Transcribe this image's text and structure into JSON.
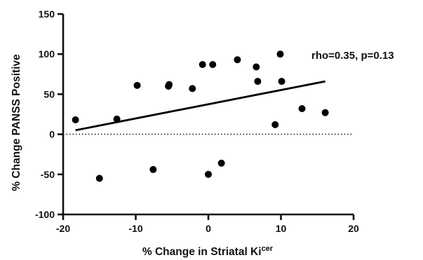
{
  "chart_data": {
    "type": "scatter",
    "xlabel_main": "% Change in Striatal Ki",
    "xlabel_sup": "cer",
    "ylabel": "% Change PANSS Positive",
    "annotation": "rho=0.35, p=0.13",
    "xlim": [
      -20,
      20
    ],
    "ylim": [
      -100,
      150
    ],
    "x_ticks": [
      -20,
      -10,
      0,
      10,
      20
    ],
    "y_ticks": [
      -100,
      -50,
      0,
      50,
      100,
      150
    ],
    "x_tick_labels": [
      "-20",
      "-10",
      "0",
      "10",
      "20"
    ],
    "y_tick_labels": [
      "-100",
      "-50",
      "0",
      "50",
      "100",
      "150"
    ],
    "reference_line_y": 0,
    "points": [
      {
        "x": -18.3,
        "y": 18
      },
      {
        "x": -15.0,
        "y": -55
      },
      {
        "x": -12.6,
        "y": 19
      },
      {
        "x": -9.8,
        "y": 61
      },
      {
        "x": -7.6,
        "y": -44
      },
      {
        "x": -5.5,
        "y": 60
      },
      {
        "x": -5.4,
        "y": 62
      },
      {
        "x": -2.2,
        "y": 57
      },
      {
        "x": -0.8,
        "y": 87
      },
      {
        "x": 0.0,
        "y": -50
      },
      {
        "x": 0.6,
        "y": 87
      },
      {
        "x": 1.8,
        "y": -36
      },
      {
        "x": 4.0,
        "y": 93
      },
      {
        "x": 6.6,
        "y": 84
      },
      {
        "x": 6.8,
        "y": 66
      },
      {
        "x": 9.2,
        "y": 12
      },
      {
        "x": 9.9,
        "y": 100
      },
      {
        "x": 10.1,
        "y": 66
      },
      {
        "x": 12.9,
        "y": 32
      },
      {
        "x": 16.1,
        "y": 27
      }
    ],
    "fit_line": {
      "x": [
        -18.3,
        16.1
      ],
      "y": [
        5,
        66
      ]
    },
    "color": "#000000"
  }
}
